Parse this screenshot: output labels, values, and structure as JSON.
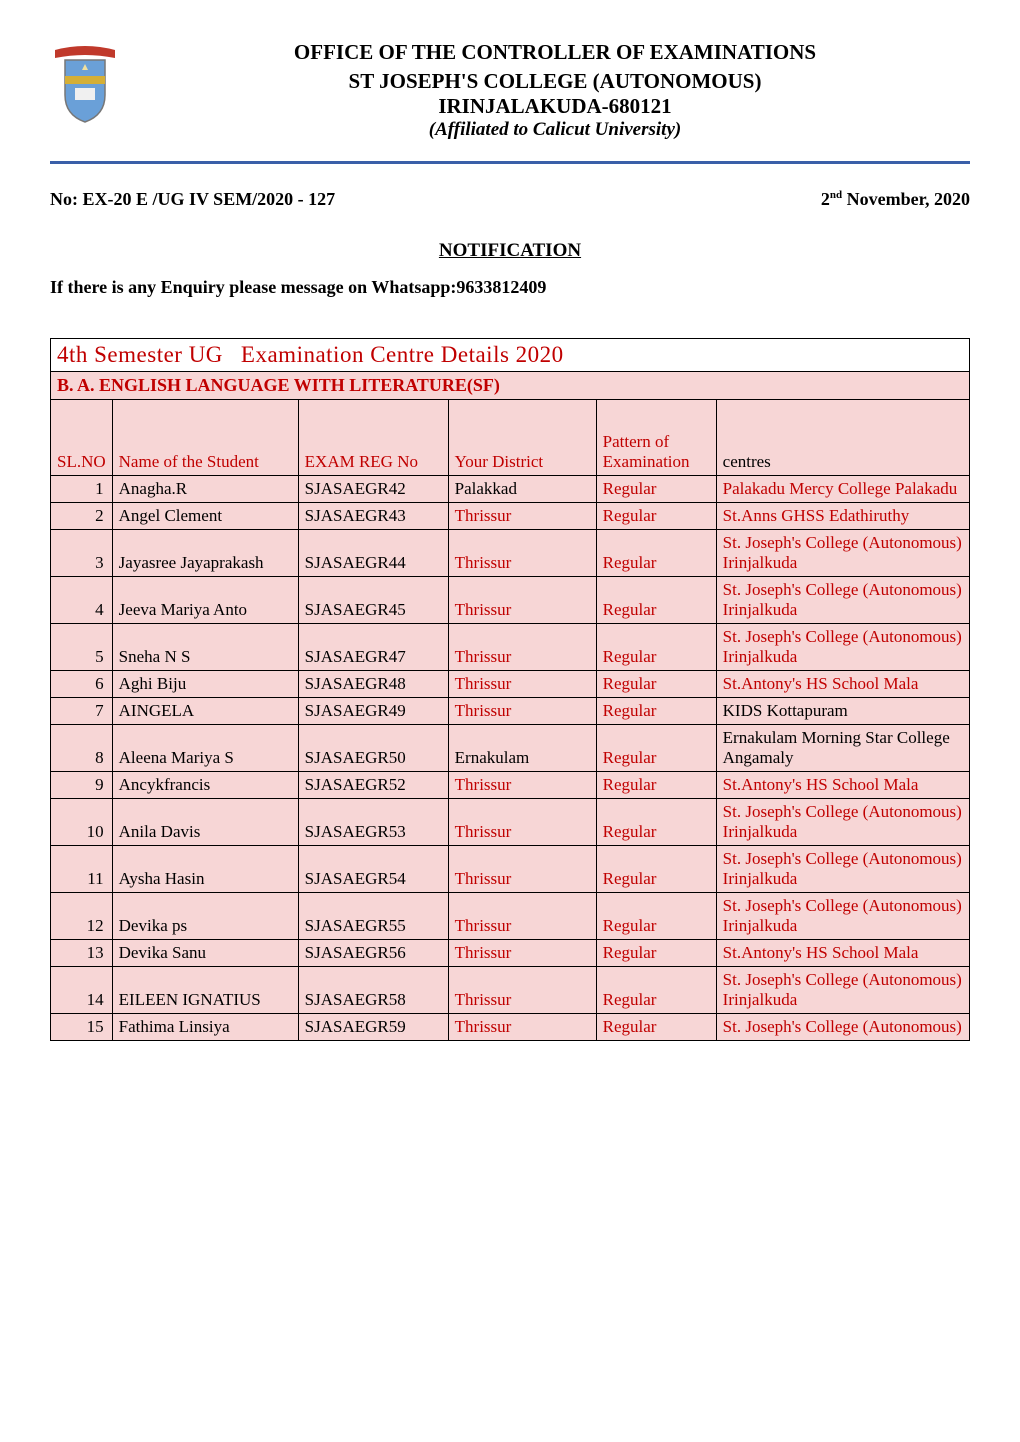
{
  "header": {
    "office_title": "OFFICE OF THE CONTROLLER OF EXAMINATIONS",
    "college_name": "ST JOSEPH'S COLLEGE (AUTONOMOUS)",
    "college_location": "IRINJALAKUDA-680121",
    "affiliation": "(Affiliated to Calicut University)",
    "logo_colors": {
      "banner": "#c0392b",
      "shield_fill": "#6aa0d8",
      "shield_border": "#777",
      "band": "#d4af37"
    }
  },
  "divider_color": "#3a5fa8",
  "ref": {
    "left": "No: EX-20 E /UG IV SEM/2020 - 127",
    "right_prefix": "2",
    "right_sup": "nd",
    "right_suffix": " November, 2020"
  },
  "notification_label": "NOTIFICATION",
  "enquiry_text": "If there is any Enquiry please message on Whatsapp:9633812409",
  "table": {
    "title_left": "4th Semester UG",
    "title_right": "Examination Centre Details  2020",
    "subtitle": "B. A. ENGLISH LANGUAGE WITH LITERATURE(SF)",
    "columns": {
      "sl": "SL.NO",
      "name": "Name of the Student",
      "reg": "EXAM REG No",
      "district": "Your District",
      "pattern": "Pattern of Examination",
      "centre": "centres"
    },
    "colors": {
      "header_text": "#c00000",
      "row_bg": "#f7d6d6",
      "centre_text": "#c00000",
      "district_pattern_text": "#c00000",
      "border": "#000000"
    },
    "rows": [
      {
        "sl": "1",
        "name": "Anagha.R",
        "reg": "SJASAEGR42",
        "district": "Palakkad",
        "pattern": "Regular",
        "centre": "Palakadu  Mercy College Palakadu",
        "district_red": false
      },
      {
        "sl": "2",
        "name": "Angel Clement",
        "reg": "SJASAEGR43",
        "district": "Thrissur",
        "pattern": "Regular",
        "centre": "St.Anns GHSS Edathiruthy",
        "district_red": true
      },
      {
        "sl": "3",
        "name": "Jayasree Jayaprakash",
        "reg": "SJASAEGR44",
        "district": "Thrissur",
        "pattern": "Regular",
        "centre": "St. Joseph's College (Autonomous) Irinjalkuda",
        "district_red": true
      },
      {
        "sl": "4",
        "name": "Jeeva Mariya Anto",
        "reg": "SJASAEGR45",
        "district": "Thrissur",
        "pattern": "Regular",
        "centre": "St. Joseph's College (Autonomous) Irinjalkuda",
        "district_red": true
      },
      {
        "sl": "5",
        "name": "Sneha N S",
        "reg": "SJASAEGR47",
        "district": "Thrissur",
        "pattern": "Regular",
        "centre": "St. Joseph's College (Autonomous) Irinjalkuda",
        "district_red": true
      },
      {
        "sl": "6",
        "name": "Aghi Biju",
        "reg": "SJASAEGR48",
        "district": "Thrissur",
        "pattern": "Regular",
        "centre": "St.Antony's HS School Mala",
        "district_red": true
      },
      {
        "sl": "7",
        "name": "AINGELA",
        "reg": "SJASAEGR49",
        "district": "Thrissur",
        "pattern": "Regular",
        "centre": "KIDS Kottapuram",
        "district_red": true,
        "centre_red": false
      },
      {
        "sl": "8",
        "name": "Aleena Mariya S",
        "reg": "SJASAEGR50",
        "district": "Ernakulam",
        "pattern": "Regular",
        "centre": "Ernakulam  Morning Star College Angamaly",
        "district_red": false,
        "centre_red": false
      },
      {
        "sl": "9",
        "name": "Ancykfrancis",
        "reg": "SJASAEGR52",
        "district": "Thrissur",
        "pattern": "Regular",
        "centre": "St.Antony's HS School Mala",
        "district_red": true
      },
      {
        "sl": "10",
        "name": "Anila Davis",
        "reg": "SJASAEGR53",
        "district": "Thrissur",
        "pattern": "Regular",
        "centre": "St. Joseph's College (Autonomous) Irinjalkuda",
        "district_red": true
      },
      {
        "sl": "11",
        "name": "Aysha Hasin",
        "reg": "SJASAEGR54",
        "district": "Thrissur",
        "pattern": "Regular",
        "centre": "St. Joseph's College (Autonomous) Irinjalkuda",
        "district_red": true
      },
      {
        "sl": "12",
        "name": "Devika ps",
        "reg": "SJASAEGR55",
        "district": "Thrissur",
        "pattern": "Regular",
        "centre": "St. Joseph's College (Autonomous) Irinjalkuda",
        "district_red": true
      },
      {
        "sl": "13",
        "name": "Devika Sanu",
        "reg": "SJASAEGR56",
        "district": "Thrissur",
        "pattern": "Regular",
        "centre": "St.Antony's HS School Mala",
        "district_red": true
      },
      {
        "sl": "14",
        "name": "EILEEN IGNATIUS",
        "reg": "SJASAEGR58",
        "district": "Thrissur",
        "pattern": "Regular",
        "centre": "St. Joseph's College (Autonomous) Irinjalkuda",
        "district_red": true
      },
      {
        "sl": "15",
        "name": "Fathima Linsiya",
        "reg": "SJASAEGR59",
        "district": "Thrissur",
        "pattern": "Regular",
        "centre": "St. Joseph's College (Autonomous)",
        "district_red": true
      }
    ]
  }
}
